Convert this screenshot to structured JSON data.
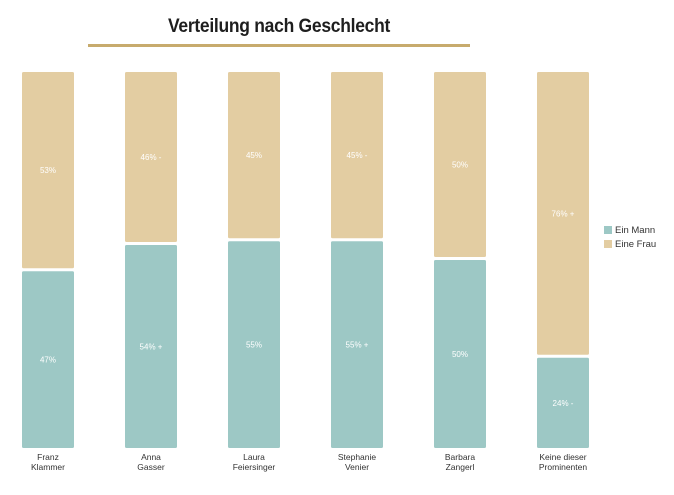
{
  "chart_data": {
    "type": "bar",
    "stacked": true,
    "normalized": true,
    "title": "Verteilung nach Geschlecht",
    "categories": [
      [
        "Franz",
        "Klammer"
      ],
      [
        "Anna",
        "Gasser"
      ],
      [
        "Laura",
        "Feiersinger"
      ],
      [
        "Stephanie",
        "Venier"
      ],
      [
        "Barbara",
        "Zangerl"
      ],
      [
        "Keine dieser",
        "Prominenten"
      ]
    ],
    "series": [
      {
        "name": "Ein Mann",
        "color": "#9dc8c5",
        "values": [
          47,
          54,
          55,
          55,
          50,
          24
        ],
        "labels": [
          "47%",
          "54% +",
          "55%",
          "55% +",
          "50%",
          "24% -"
        ]
      },
      {
        "name": "Eine Frau",
        "color": "#e3cda2",
        "values": [
          53,
          46,
          45,
          45,
          50,
          76
        ],
        "labels": [
          "53%",
          "46% -",
          "45%",
          "45% -",
          "50%",
          "76% +"
        ]
      }
    ],
    "ylim": [
      0,
      100
    ],
    "grid": false,
    "legend": "right"
  }
}
